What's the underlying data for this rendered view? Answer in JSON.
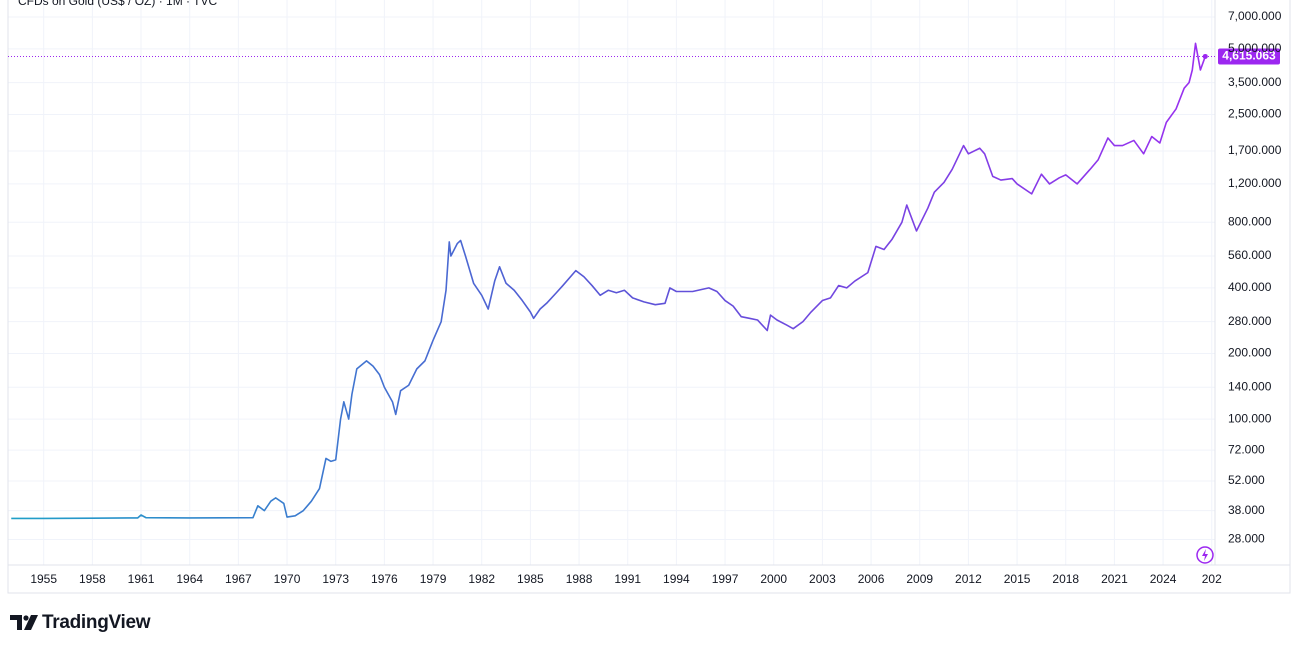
{
  "chart_data": {
    "type": "line",
    "title": "CFDs on Gold (US$ / OZ) · 1M · TVC",
    "log_scale": true,
    "grid": true,
    "line_colors": [
      "#1fa0c8",
      "#5a55d6",
      "#9b2ff0"
    ],
    "last_value_color": "#9c27f0",
    "x": [
      1953.0,
      1955.0,
      1958.0,
      1960.8,
      1961.0,
      1961.3,
      1964.0,
      1967.9,
      1968.2,
      1968.6,
      1969.0,
      1969.3,
      1969.8,
      1970.0,
      1970.5,
      1971.0,
      1971.5,
      1972.0,
      1972.4,
      1972.7,
      1973.0,
      1973.3,
      1973.5,
      1973.8,
      1974.0,
      1974.3,
      1974.9,
      1975.3,
      1975.7,
      1976.0,
      1976.5,
      1976.7,
      1977.0,
      1977.5,
      1978.0,
      1978.5,
      1979.0,
      1979.5,
      1979.8,
      1980.0,
      1980.1,
      1980.5,
      1980.7,
      1981.0,
      1981.5,
      1982.0,
      1982.4,
      1982.8,
      1983.1,
      1983.5,
      1984.0,
      1984.5,
      1985.0,
      1985.2,
      1985.6,
      1986.0,
      1986.6,
      1987.0,
      1987.8,
      1988.3,
      1988.8,
      1989.3,
      1989.8,
      1990.3,
      1990.8,
      1991.3,
      1992.0,
      1992.7,
      1993.3,
      1993.6,
      1994.0,
      1995.0,
      1996.0,
      1996.5,
      1997.0,
      1997.5,
      1998.0,
      1998.5,
      1999.0,
      1999.6,
      1999.8,
      2000.2,
      2000.8,
      2001.2,
      2001.8,
      2002.3,
      2003.0,
      2003.5,
      2004.0,
      2004.5,
      2005.0,
      2005.8,
      2006.3,
      2006.8,
      2007.3,
      2007.9,
      2008.2,
      2008.8,
      2009.5,
      2009.9,
      2010.5,
      2011.0,
      2011.7,
      2012.0,
      2012.7,
      2013.0,
      2013.5,
      2014.0,
      2014.7,
      2015.0,
      2015.9,
      2016.5,
      2017.0,
      2017.6,
      2018.0,
      2018.7,
      2019.5,
      2020.0,
      2020.6,
      2021.0,
      2021.5,
      2022.2,
      2022.8,
      2023.3,
      2023.8,
      2024.2,
      2024.8,
      2025.3,
      2025.6,
      2025.8,
      2026.0,
      2026.3,
      2026.6
    ],
    "values": [
      35,
      35,
      35.1,
      35.2,
      36.3,
      35.3,
      35.2,
      35.3,
      40,
      38,
      42,
      43.5,
      41,
      35.5,
      36,
      38,
      42,
      48,
      66,
      64,
      65,
      100,
      120,
      100,
      130,
      170,
      185,
      175,
      160,
      140,
      120,
      105,
      135,
      143,
      170,
      185,
      230,
      280,
      390,
      650,
      560,
      640,
      660,
      560,
      420,
      370,
      320,
      430,
      500,
      420,
      390,
      350,
      310,
      290,
      320,
      340,
      380,
      410,
      480,
      450,
      410,
      370,
      390,
      380,
      390,
      360,
      345,
      335,
      340,
      400,
      385,
      385,
      400,
      385,
      350,
      330,
      295,
      290,
      285,
      255,
      300,
      285,
      270,
      260,
      280,
      310,
      350,
      360,
      410,
      400,
      430,
      470,
      620,
      600,
      670,
      800,
      960,
      730,
      930,
      1100,
      1220,
      1400,
      1800,
      1650,
      1750,
      1650,
      1300,
      1250,
      1270,
      1200,
      1080,
      1330,
      1200,
      1280,
      1320,
      1200,
      1400,
      1550,
      1950,
      1800,
      1800,
      1900,
      1650,
      1980,
      1850,
      2300,
      2650,
      3300,
      3500,
      4000,
      5300,
      4000,
      4615.063
    ],
    "last_value_label": "4,615.063",
    "xlim": [
      1952.8,
      2027.2
    ],
    "xticks": [
      1955,
      1958,
      1961,
      1964,
      1967,
      1970,
      1973,
      1976,
      1979,
      1982,
      1985,
      1988,
      1991,
      1994,
      1997,
      2000,
      2003,
      2006,
      2009,
      2012,
      2015,
      2018,
      2021,
      2024,
      {
        "value": 2027,
        "label": "202"
      }
    ],
    "ylim": [
      21.4,
      8380
    ],
    "yticks": [
      {
        "value": 7000,
        "label": "7,000.000"
      },
      {
        "value": 5000,
        "label": "5,000.000"
      },
      {
        "value": 3500,
        "label": "3,500.000"
      },
      {
        "value": 2500,
        "label": "2,500.000"
      },
      {
        "value": 1700,
        "label": "1,700.000"
      },
      {
        "value": 1200,
        "label": "1,200.000"
      },
      {
        "value": 800,
        "label": "800.000"
      },
      {
        "value": 560,
        "label": "560.000"
      },
      {
        "value": 400,
        "label": "400.000"
      },
      {
        "value": 280,
        "label": "280.000"
      },
      {
        "value": 200,
        "label": "200.000"
      },
      {
        "value": 140,
        "label": "140.000"
      },
      {
        "value": 100,
        "label": "100.000"
      },
      {
        "value": 72,
        "label": "72.000"
      },
      {
        "value": 52,
        "label": "52.000"
      },
      {
        "value": 38,
        "label": "38.000"
      },
      {
        "value": 28,
        "label": "28.000"
      }
    ]
  },
  "footer": {
    "brand": "TradingView"
  }
}
